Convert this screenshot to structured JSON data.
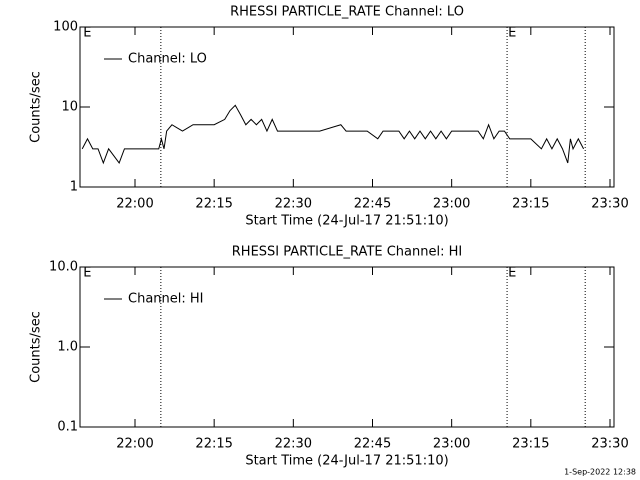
{
  "chart_data": [
    {
      "type": "line",
      "title": "RHESSI PARTICLE_RATE Channel: LO",
      "xlabel": "Start Time (24-Jul-17 21:51:10)",
      "ylabel": "Counts/sec",
      "log_y": true,
      "legend": "upper left",
      "xlim": [
        1309.58,
        1410.76
      ],
      "ylim": [
        1,
        100
      ],
      "xticks": [
        {
          "value": 1320,
          "label": "22:00"
        },
        {
          "value": 1335,
          "label": "22:15"
        },
        {
          "value": 1350,
          "label": "22:30"
        },
        {
          "value": 1365,
          "label": "22:45"
        },
        {
          "value": 1380,
          "label": "23:00"
        },
        {
          "value": 1395,
          "label": "23:15"
        },
        {
          "value": 1410,
          "label": "23:30"
        }
      ],
      "yticks": [
        1,
        10,
        100
      ],
      "vlines": [
        1324.9,
        1390.5,
        1405.3
      ],
      "annotations": [
        {
          "text": "E",
          "x": 1310
        },
        {
          "text": "E",
          "x": 1390.5
        }
      ],
      "series": [
        {
          "name": "Channel: LO",
          "color": "#000000",
          "x": [
            1310,
            1311,
            1312,
            1313,
            1314,
            1315,
            1317,
            1318,
            1320,
            1322,
            1324.5,
            1325,
            1325.5,
            1326,
            1327,
            1329,
            1331,
            1335,
            1337,
            1338,
            1339,
            1340,
            1341,
            1342,
            1343,
            1344,
            1345,
            1346,
            1347,
            1350,
            1355,
            1359,
            1360,
            1364,
            1366,
            1367,
            1370,
            1371,
            1372,
            1373,
            1374,
            1375,
            1376,
            1377,
            1378,
            1379,
            1380,
            1385,
            1386,
            1387,
            1388,
            1389,
            1390,
            1391,
            1395,
            1397,
            1398,
            1399,
            1400,
            1401,
            1402,
            1402.5,
            1403,
            1404,
            1405
          ],
          "values": [
            3,
            4,
            3,
            3,
            2,
            3,
            2,
            3,
            3,
            3,
            3,
            4,
            3,
            5,
            6,
            5,
            6,
            6,
            7,
            9,
            10.5,
            8,
            6,
            7,
            6,
            7,
            5,
            7,
            5,
            5,
            5,
            6,
            5,
            5,
            4,
            5,
            5,
            4,
            5,
            4,
            5,
            4,
            5,
            4,
            5,
            4,
            5,
            5,
            4,
            6,
            4,
            5,
            5,
            4,
            4,
            3,
            4,
            3,
            4,
            3,
            2,
            4,
            3,
            4,
            3
          ]
        }
      ]
    },
    {
      "type": "line",
      "title": "RHESSI PARTICLE_RATE Channel: HI",
      "xlabel": "Start Time (24-Jul-17 21:51:10)",
      "ylabel": "Counts/sec",
      "log_y": true,
      "legend": "upper left",
      "xlim": [
        1309.58,
        1410.76
      ],
      "ylim": [
        0.1,
        10
      ],
      "xticks": [
        {
          "value": 1320,
          "label": "22:00"
        },
        {
          "value": 1335,
          "label": "22:15"
        },
        {
          "value": 1350,
          "label": "22:30"
        },
        {
          "value": 1365,
          "label": "22:45"
        },
        {
          "value": 1380,
          "label": "23:00"
        },
        {
          "value": 1395,
          "label": "23:15"
        },
        {
          "value": 1410,
          "label": "23:30"
        }
      ],
      "yticks": [
        {
          "value": 0.1,
          "label": "0.1"
        },
        {
          "value": 1,
          "label": "1.0"
        },
        {
          "value": 10,
          "label": "10.0"
        }
      ],
      "vlines": [
        1324.9,
        1390.5,
        1405.3
      ],
      "annotations": [
        {
          "text": "E",
          "x": 1310
        },
        {
          "text": "E",
          "x": 1390.5
        }
      ],
      "series": [
        {
          "name": "Channel: HI",
          "color": "#000000",
          "x": [],
          "values": []
        }
      ]
    }
  ],
  "footer": "1-Sep-2022 12:38"
}
